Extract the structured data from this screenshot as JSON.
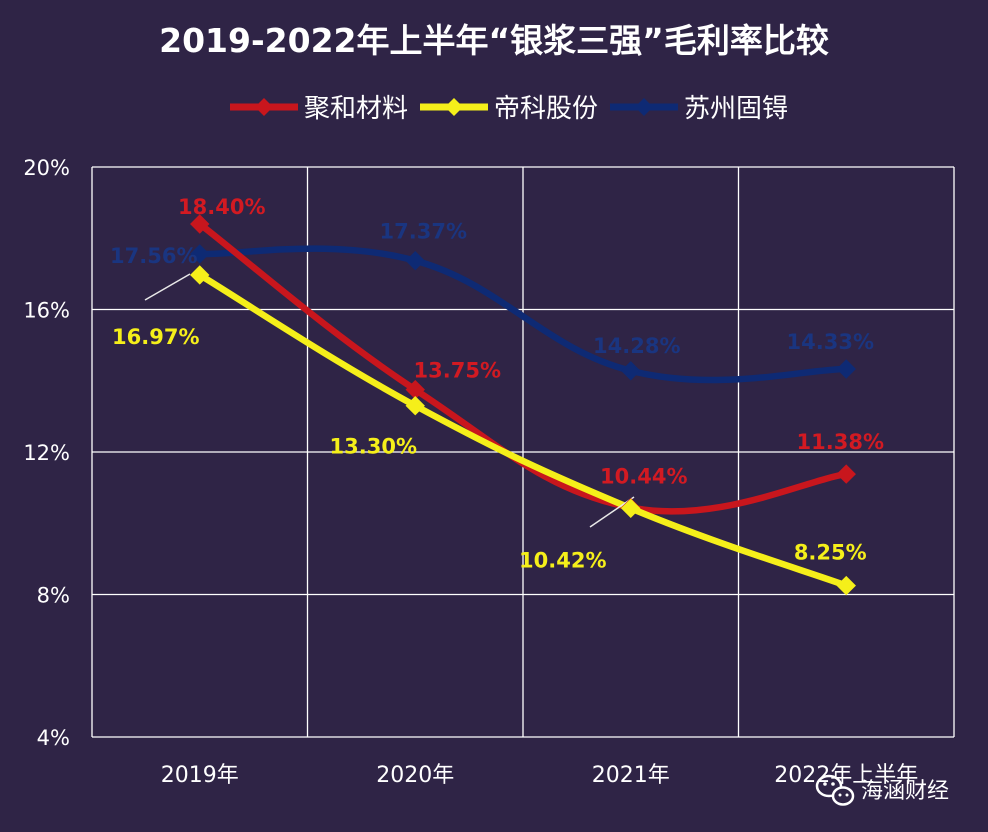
{
  "chart_data": {
    "type": "line",
    "title": "2019-2022年上半年“银浆三强”毛利率比较",
    "categories": [
      "2019年",
      "2020年",
      "2021年",
      "2022年上半年"
    ],
    "ylim": [
      4,
      20
    ],
    "yticks": [
      "4%",
      "8%",
      "12%",
      "16%",
      "20%"
    ],
    "ytick_values": [
      4,
      8,
      12,
      16,
      20
    ],
    "grid": true,
    "legend_position": "top",
    "series": [
      {
        "name": "聚和材料",
        "color": "#c8161d",
        "values": [
          18.4,
          13.75,
          10.44,
          11.38
        ],
        "labels": [
          "18.40%",
          "13.75%",
          "10.44%",
          "11.38%"
        ]
      },
      {
        "name": "帝科股份",
        "color": "#f5ef1a",
        "values": [
          16.97,
          13.3,
          10.42,
          8.25
        ],
        "labels": [
          "16.97%",
          "13.30%",
          "10.42%",
          "8.25%"
        ]
      },
      {
        "name": "苏州固锝",
        "color": "#0e2a74",
        "values": [
          17.56,
          17.37,
          14.28,
          14.33
        ],
        "labels": [
          "17.56%",
          "17.37%",
          "14.28%",
          "14.33%"
        ]
      }
    ]
  },
  "watermark": {
    "text": "海涵财经",
    "icon": "wechat-icon"
  }
}
